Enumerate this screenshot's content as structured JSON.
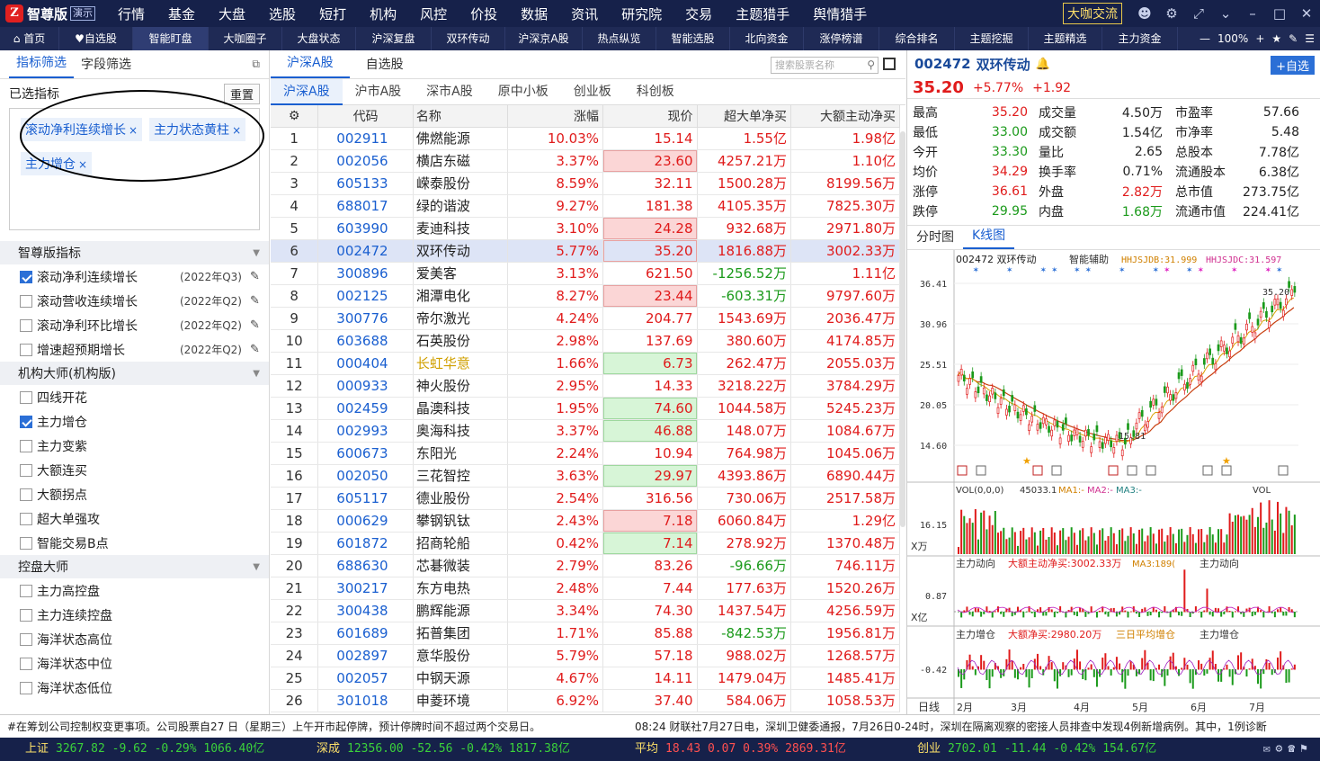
{
  "app": {
    "logo_text": "智尊版",
    "demo_badge": "演示"
  },
  "top_menu": [
    "行情",
    "基金",
    "大盘",
    "选股",
    "短打",
    "机构",
    "风控",
    "价投",
    "数据",
    "资讯",
    "研究院",
    "交易",
    "主题猎手",
    "舆情猎手"
  ],
  "top_right": {
    "daka_btn": "大咖交流"
  },
  "nav": {
    "items": [
      "首页",
      "自选股",
      "智能盯盘",
      "大咖圈子",
      "大盘状态",
      "沪深复盘",
      "双环传动",
      "沪深京A股",
      "热点纵览",
      "智能选股",
      "北向资金",
      "涨停榜谱",
      "综合排名",
      "主题挖掘",
      "主题精选",
      "主力资金"
    ],
    "active_index": 2,
    "zoom": "100%"
  },
  "left": {
    "tabs": [
      "指标筛选",
      "字段筛选"
    ],
    "selected_title": "已选指标",
    "reset_label": "重置",
    "selected_tags": [
      "滚动净利连续增长",
      "主力状态黄柱",
      "主力增仓"
    ],
    "groups": [
      {
        "title": "智尊版指标",
        "items": [
          {
            "label": "滚动净利连续增长",
            "checked": true,
            "year": "(2022年Q3)"
          },
          {
            "label": "滚动营收连续增长",
            "checked": false,
            "year": "(2022年Q2)"
          },
          {
            "label": "滚动净利环比增长",
            "checked": false,
            "year": "(2022年Q2)"
          },
          {
            "label": "增速超预期增长",
            "checked": false,
            "year": "(2022年Q2)"
          }
        ]
      },
      {
        "title": "机构大师(机构版)",
        "items": [
          {
            "label": "四线开花",
            "checked": false
          },
          {
            "label": "主力增仓",
            "checked": true
          },
          {
            "label": "主力变紫",
            "checked": false
          },
          {
            "label": "大额连买",
            "checked": false
          },
          {
            "label": "大额拐点",
            "checked": false
          },
          {
            "label": "超大单强攻",
            "checked": false
          },
          {
            "label": "智能交易B点",
            "checked": false
          }
        ]
      },
      {
        "title": "控盘大师",
        "items": [
          {
            "label": "主力高控盘",
            "checked": false
          },
          {
            "label": "主力连续控盘",
            "checked": false
          },
          {
            "label": "海洋状态高位",
            "checked": false
          },
          {
            "label": "海洋状态中位",
            "checked": false
          },
          {
            "label": "海洋状态低位",
            "checked": false
          }
        ]
      }
    ]
  },
  "middle": {
    "tabs": [
      "沪深A股",
      "自选股"
    ],
    "search_placeholder": "搜索股票名称",
    "subtabs": [
      "沪深A股",
      "沪市A股",
      "深市A股",
      "原中小板",
      "创业板",
      "科创板"
    ],
    "columns": [
      "代码",
      "名称",
      "涨幅",
      "现价",
      "超大单净买",
      "大额主动净买"
    ],
    "rows": [
      {
        "n": "1",
        "code": "002911",
        "name": "佛燃能源",
        "chg": "10.03%",
        "price": "15.14",
        "xl": "1.55亿",
        "big": "1.98亿",
        "box": ""
      },
      {
        "n": "2",
        "code": "002056",
        "name": "横店东磁",
        "chg": "3.37%",
        "price": "23.60",
        "xl": "4257.21万",
        "big": "1.10亿",
        "box": "r"
      },
      {
        "n": "3",
        "code": "605133",
        "name": "嵘泰股份",
        "chg": "8.59%",
        "price": "32.11",
        "xl": "1500.28万",
        "big": "8199.56万",
        "box": ""
      },
      {
        "n": "4",
        "code": "688017",
        "name": "绿的谐波",
        "chg": "9.27%",
        "price": "181.38",
        "xl": "4105.35万",
        "big": "7825.30万",
        "box": ""
      },
      {
        "n": "5",
        "code": "603990",
        "name": "麦迪科技",
        "chg": "3.10%",
        "price": "24.28",
        "xl": "932.68万",
        "big": "2971.80万",
        "box": "r"
      },
      {
        "n": "6",
        "code": "002472",
        "name": "双环传动",
        "chg": "5.77%",
        "price": "35.20",
        "xl": "1816.88万",
        "big": "3002.33万",
        "box": "r",
        "hl": true
      },
      {
        "n": "7",
        "code": "300896",
        "name": "爱美客",
        "chg": "3.13%",
        "price": "621.50",
        "xl": "-1256.52万",
        "big": "1.11亿",
        "box": ""
      },
      {
        "n": "8",
        "code": "002125",
        "name": "湘潭电化",
        "chg": "8.27%",
        "price": "23.44",
        "xl": "-603.31万",
        "big": "9797.60万",
        "box": "r"
      },
      {
        "n": "9",
        "code": "300776",
        "name": "帝尔激光",
        "chg": "4.24%",
        "price": "204.77",
        "xl": "1543.69万",
        "big": "2036.47万",
        "box": ""
      },
      {
        "n": "10",
        "code": "603688",
        "name": "石英股份",
        "chg": "2.98%",
        "price": "137.69",
        "xl": "380.60万",
        "big": "4174.85万",
        "box": ""
      },
      {
        "n": "11",
        "code": "000404",
        "name": "长虹华意",
        "chg": "1.66%",
        "price": "6.73",
        "xl": "262.47万",
        "big": "2055.03万",
        "box": "g",
        "orange": true
      },
      {
        "n": "12",
        "code": "000933",
        "name": "神火股份",
        "chg": "2.95%",
        "price": "14.33",
        "xl": "3218.22万",
        "big": "3784.29万",
        "box": ""
      },
      {
        "n": "13",
        "code": "002459",
        "name": "晶澳科技",
        "chg": "1.95%",
        "price": "74.60",
        "xl": "1044.58万",
        "big": "5245.23万",
        "box": "g"
      },
      {
        "n": "14",
        "code": "002993",
        "name": "奥海科技",
        "chg": "3.37%",
        "price": "46.88",
        "xl": "148.07万",
        "big": "1084.67万",
        "box": "g"
      },
      {
        "n": "15",
        "code": "600673",
        "name": "东阳光",
        "chg": "2.24%",
        "price": "10.94",
        "xl": "764.98万",
        "big": "1045.06万",
        "box": ""
      },
      {
        "n": "16",
        "code": "002050",
        "name": "三花智控",
        "chg": "3.63%",
        "price": "29.97",
        "xl": "4393.86万",
        "big": "6890.44万",
        "box": "g"
      },
      {
        "n": "17",
        "code": "605117",
        "name": "德业股份",
        "chg": "2.54%",
        "price": "316.56",
        "xl": "730.06万",
        "big": "2517.58万",
        "box": ""
      },
      {
        "n": "18",
        "code": "000629",
        "name": "攀钢钒钛",
        "chg": "2.43%",
        "price": "7.18",
        "xl": "6060.84万",
        "big": "1.29亿",
        "box": "r"
      },
      {
        "n": "19",
        "code": "601872",
        "name": "招商轮船",
        "chg": "0.42%",
        "price": "7.14",
        "xl": "278.92万",
        "big": "1370.48万",
        "box": "g"
      },
      {
        "n": "20",
        "code": "688630",
        "name": "芯碁微装",
        "chg": "2.79%",
        "price": "83.26",
        "xl": "-96.66万",
        "big": "746.11万",
        "box": ""
      },
      {
        "n": "21",
        "code": "300217",
        "name": "东方电热",
        "chg": "2.48%",
        "price": "7.44",
        "xl": "177.63万",
        "big": "1520.26万",
        "box": ""
      },
      {
        "n": "22",
        "code": "300438",
        "name": "鹏辉能源",
        "chg": "3.34%",
        "price": "74.30",
        "xl": "1437.54万",
        "big": "4256.59万",
        "box": ""
      },
      {
        "n": "23",
        "code": "601689",
        "name": "拓普集团",
        "chg": "1.71%",
        "price": "85.88",
        "xl": "-842.53万",
        "big": "1956.81万",
        "box": ""
      },
      {
        "n": "24",
        "code": "002897",
        "name": "意华股份",
        "chg": "5.79%",
        "price": "57.18",
        "xl": "988.02万",
        "big": "1268.57万",
        "box": ""
      },
      {
        "n": "25",
        "code": "002057",
        "name": "中钢天源",
        "chg": "4.67%",
        "price": "14.11",
        "xl": "1479.04万",
        "big": "1485.41万",
        "box": ""
      },
      {
        "n": "26",
        "code": "301018",
        "name": "申菱环境",
        "chg": "6.92%",
        "price": "37.40",
        "xl": "584.06万",
        "big": "1058.53万",
        "box": ""
      }
    ]
  },
  "right": {
    "code": "002472",
    "name": "双环传动",
    "add_label": "+自选",
    "price": "35.20",
    "chg_pct": "+5.77%",
    "chg": "+1.92",
    "stats": [
      [
        "最高",
        "35.20",
        "成交量",
        "4.50万",
        "市盈率",
        "57.66"
      ],
      [
        "最低",
        "33.00",
        "成交额",
        "1.54亿",
        "市净率",
        "5.48"
      ],
      [
        "今开",
        "33.30",
        "量比",
        "2.65",
        "总股本",
        "7.78亿"
      ],
      [
        "均价",
        "34.29",
        "换手率",
        "0.71%",
        "流通股本",
        "6.38亿"
      ],
      [
        "涨停",
        "36.61",
        "外盘",
        "2.82万",
        "总市值",
        "273.75亿"
      ],
      [
        "跌停",
        "29.95",
        "内盘",
        "1.68万",
        "流通市值",
        "224.41亿"
      ]
    ],
    "chart_tabs": [
      "分时图",
      "K线图"
    ],
    "kline": {
      "title": "002472 双环传动",
      "assist": "智能辅助",
      "ind1": "HHJSJDB:31.999",
      "ind2": "HHJSJDC:31.597",
      "yticks": [
        "36.41",
        "30.96",
        "25.51",
        "20.05",
        "14.60"
      ],
      "hi_label": "35.20",
      "lo_label": "15.81",
      "vol_title": "VOL(0,0,0)",
      "vol_val": "45033.1",
      "vol_ma": [
        "MA1:-",
        "MA2:-",
        "MA3:-"
      ],
      "vol_tick": "16.15",
      "vol_unit": "X万",
      "vol_right": "VOL",
      "p2_title": "主力动向",
      "p2_ind": "大额主动净买:3002.33万",
      "p2_ma": "MA3:189(",
      "p2_right": "主力动向",
      "p2_tick": "0.87",
      "p2_unit": "X亿",
      "p3_title": "主力增仓",
      "p3_ind": "大额净买:2980.20万",
      "p3_ma": "三日平均增仓",
      "p3_right": "主力增仓",
      "p3_tick": "-0.42",
      "xlabel": "日线",
      "months": [
        "2月",
        "3月",
        "4月",
        "5月",
        "6月",
        "7月"
      ]
    }
  },
  "news": {
    "left": "#在筹划公司控制权变更事项。公司股票自27 日（星期三）上午开市起停牌，预计停牌时间不超过两个交易日。",
    "right": "08:24 财联社7月27日电，深圳卫健委通报，7月26日0-24时，深圳在隔离观察的密接人员排查中发现4例新增病例。其中，1例诊断"
  },
  "ticker": [
    {
      "label": "上证",
      "vals": "3267.82 -9.62 -0.29% 1066.40亿"
    },
    {
      "label": "深成",
      "vals": "12356.00 -52.56 -0.42% 1817.38亿"
    },
    {
      "label": "平均",
      "vals": "18.43 0.07 0.39% 2869.31亿"
    },
    {
      "label": "创业",
      "vals": "2702.01 -11.44 -0.42% 154.67亿"
    }
  ],
  "colors": {
    "up": "#e01b1b",
    "down": "#1b9a1b",
    "accent": "#1a5fd0",
    "top_bg": "#16214a"
  }
}
